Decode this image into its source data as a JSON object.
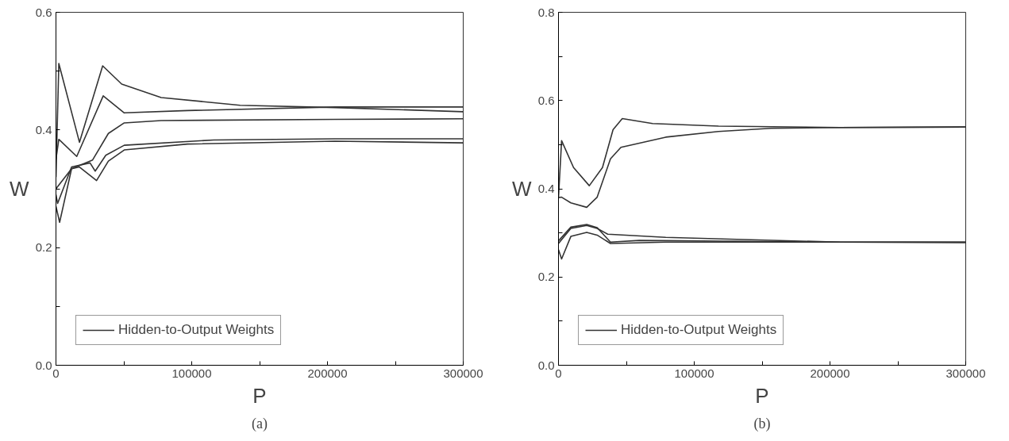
{
  "chart_data": [
    {
      "type": "line",
      "xlabel": "P",
      "ylabel": "W",
      "annotations": [
        "(a)"
      ],
      "legend": "bottom left",
      "grid": false,
      "marker": "none",
      "line_style": "solid",
      "xlim": [
        0,
        300000
      ],
      "ylim": [
        0,
        0.6
      ],
      "xticks": [
        0,
        {
          "value": 50000,
          "label": null
        },
        100000,
        {
          "value": 150000,
          "label": null
        },
        200000,
        {
          "value": 250000,
          "label": null
        },
        300000
      ],
      "yticks": [
        {
          "value": 0,
          "label": "0.0"
        },
        {
          "value": 0.1,
          "label": null
        },
        0.2,
        {
          "value": 0.3,
          "label": null
        },
        0.4,
        {
          "value": 0.5,
          "label": null
        },
        0.6
      ],
      "series": [
        {
          "name": "Hidden-to-Output Weights",
          "color": "#333333",
          "x": [
            0,
            2100,
            17300,
            34400,
            48400,
            77500,
            135700,
            205700,
            300000
          ],
          "values": [
            0.32,
            0.513,
            0.379,
            0.509,
            0.478,
            0.455,
            0.442,
            0.438,
            0.431
          ]
        },
        {
          "color": "#333333",
          "x": [
            0,
            2100,
            15300,
            34800,
            50300,
            96900,
            205700,
            300000
          ],
          "values": [
            0.35,
            0.384,
            0.355,
            0.458,
            0.429,
            0.433,
            0.439,
            0.439
          ]
        },
        {
          "color": "#333333",
          "x": [
            0,
            11500,
            27000,
            38600,
            50300,
            77500,
            205700,
            300000
          ],
          "values": [
            0.3,
            0.334,
            0.349,
            0.394,
            0.412,
            0.416,
            0.418,
            0.419
          ]
        },
        {
          "color": "#333333",
          "x": [
            0,
            2700,
            11500,
            17300,
            29900,
            38600,
            50300,
            96900,
            205700,
            300000
          ],
          "values": [
            0.27,
            0.243,
            0.334,
            0.337,
            0.314,
            0.347,
            0.366,
            0.376,
            0.381,
            0.378
          ]
        },
        {
          "color": "#333333",
          "x": [
            0,
            1200,
            11500,
            25100,
            28900,
            36700,
            50300,
            116300,
            205700,
            300000
          ],
          "values": [
            0.29,
            0.275,
            0.337,
            0.344,
            0.33,
            0.357,
            0.374,
            0.383,
            0.385,
            0.385
          ]
        }
      ]
    },
    {
      "type": "line",
      "xlabel": "P",
      "ylabel": "W",
      "annotations": [
        "(b)"
      ],
      "legend": "bottom left",
      "grid": false,
      "marker": "none",
      "line_style": "solid",
      "xlim": [
        0,
        300000
      ],
      "ylim": [
        0,
        0.8
      ],
      "xticks": [
        0,
        {
          "value": 50000,
          "label": null
        },
        100000,
        {
          "value": 150000,
          "label": null
        },
        200000,
        {
          "value": 250000,
          "label": null
        },
        300000
      ],
      "yticks": [
        {
          "value": 0,
          "label": "0.0"
        },
        {
          "value": 0.1,
          "label": null
        },
        0.2,
        {
          "value": 0.3,
          "label": null
        },
        0.4,
        {
          "value": 0.5,
          "label": null
        },
        0.6,
        {
          "value": 0.7,
          "label": null
        },
        0.8
      ],
      "series": [
        {
          "name": "Hidden-to-Output Weights",
          "color": "#333333",
          "x": [
            0,
            2300,
            11100,
            22700,
            32400,
            40200,
            47000,
            69300,
            117900,
            207200,
            300000
          ],
          "values": [
            0.38,
            0.509,
            0.448,
            0.407,
            0.448,
            0.534,
            0.559,
            0.548,
            0.542,
            0.539,
            0.54
          ]
        },
        {
          "color": "#333333",
          "x": [
            0,
            2300,
            9100,
            20800,
            28500,
            38300,
            46000,
            79000,
            117900,
            156700,
            207200,
            300000
          ],
          "values": [
            0.38,
            0.381,
            0.368,
            0.358,
            0.381,
            0.468,
            0.494,
            0.517,
            0.53,
            0.537,
            0.539,
            0.54
          ]
        },
        {
          "color": "#333333",
          "x": [
            0,
            9100,
            20800,
            28500,
            36300,
            79000,
            207200,
            300000
          ],
          "values": [
            0.276,
            0.31,
            0.317,
            0.31,
            0.297,
            0.29,
            0.279,
            0.278
          ]
        },
        {
          "color": "#333333",
          "x": [
            0,
            9100,
            20800,
            28500,
            38300,
            59600,
            207200,
            300000
          ],
          "values": [
            0.282,
            0.313,
            0.319,
            0.312,
            0.279,
            0.283,
            0.279,
            0.279
          ]
        },
        {
          "color": "#333333",
          "x": [
            0,
            2300,
            9100,
            20800,
            28500,
            38300,
            79000,
            207200,
            300000
          ],
          "values": [
            0.262,
            0.241,
            0.292,
            0.301,
            0.295,
            0.276,
            0.279,
            0.279,
            0.279
          ]
        }
      ]
    }
  ]
}
